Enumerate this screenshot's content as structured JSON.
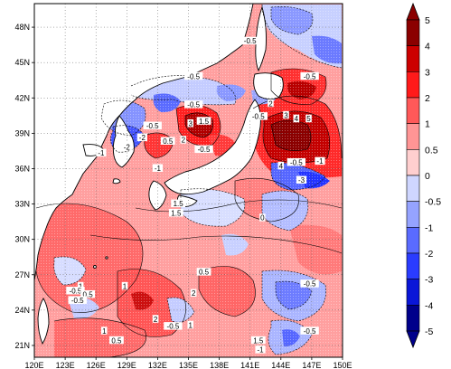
{
  "map": {
    "lat_labels": [
      "48N",
      "45N",
      "42N",
      "39N",
      "36N",
      "33N",
      "30N",
      "27N",
      "24N",
      "21N"
    ],
    "lon_labels": [
      "120E",
      "123E",
      "126E",
      "129E",
      "132E",
      "135E",
      "138E",
      "141E",
      "144E",
      "147E",
      "150E"
    ]
  },
  "colorbar": {
    "labels": [
      "5",
      "4",
      "3",
      "2",
      "1",
      "0.5",
      "0",
      "-0.5",
      "-1",
      "-2",
      "-3",
      "-4",
      "-5"
    ],
    "colors": [
      "#8b0000",
      "#cc0000",
      "#ff1a1a",
      "#ff5959",
      "#ff9595",
      "#ffcfcf",
      "#ffffff",
      "#cfd6ff",
      "#95a3ff",
      "#5a6bff",
      "#2a3cff",
      "#0a16d8",
      "#00008b"
    ]
  },
  "contour_labels": [
    {
      "text": "-0.5",
      "lon": 141.0,
      "lat": 46.8
    },
    {
      "text": "-0.5",
      "lon": 135.5,
      "lat": 43.8
    },
    {
      "text": "-0.5",
      "lon": 146.8,
      "lat": 43.8
    },
    {
      "text": "-0.5",
      "lon": 135.5,
      "lat": 41.4
    },
    {
      "text": "-0.5",
      "lon": 131.5,
      "lat": 39.6
    },
    {
      "text": "-0.5",
      "lon": 141.8,
      "lat": 40.4
    },
    {
      "text": "-0.5",
      "lon": 136.5,
      "lat": 37.6
    },
    {
      "text": "0.5",
      "lon": 133.0,
      "lat": 38.3
    },
    {
      "text": "-2",
      "lon": 130.5,
      "lat": 38.6
    },
    {
      "text": "2",
      "lon": 134.5,
      "lat": 38.4
    },
    {
      "text": "3",
      "lon": 135.2,
      "lat": 39.8
    },
    {
      "text": "1.5",
      "lon": 136.5,
      "lat": 40.0
    },
    {
      "text": "2",
      "lon": 143.0,
      "lat": 41.5
    },
    {
      "text": "3",
      "lon": 144.5,
      "lat": 40.5
    },
    {
      "text": "4",
      "lon": 145.5,
      "lat": 40.2
    },
    {
      "text": "5",
      "lon": 146.7,
      "lat": 40.2
    },
    {
      "text": "4",
      "lon": 144.0,
      "lat": 36.2
    },
    {
      "text": "-0.5",
      "lon": 145.5,
      "lat": 36.5
    },
    {
      "text": "-1",
      "lon": 147.8,
      "lat": 36.6
    },
    {
      "text": "-1",
      "lon": 126.5,
      "lat": 37.3
    },
    {
      "text": "-2",
      "lon": 129.0,
      "lat": 37.8
    },
    {
      "text": "-1",
      "lon": 132.0,
      "lat": 36.0
    },
    {
      "text": "-3",
      "lon": 146.0,
      "lat": 35.0
    },
    {
      "text": "1.5",
      "lon": 134.0,
      "lat": 33.0
    },
    {
      "text": "1.5",
      "lon": 133.8,
      "lat": 32.2
    },
    {
      "text": "0",
      "lon": 142.2,
      "lat": 31.8
    },
    {
      "text": "0.5",
      "lon": 136.5,
      "lat": 27.2
    },
    {
      "text": "-0.5",
      "lon": 146.8,
      "lat": 26.2
    },
    {
      "text": "1",
      "lon": 124.5,
      "lat": 26.0
    },
    {
      "text": "-0.5",
      "lon": 124.0,
      "lat": 25.6
    },
    {
      "text": "0.5",
      "lon": 125.2,
      "lat": 25.3
    },
    {
      "text": "-0.5",
      "lon": 124.2,
      "lat": 24.8
    },
    {
      "text": "1",
      "lon": 128.8,
      "lat": 26.0
    },
    {
      "text": "2",
      "lon": 135.5,
      "lat": 25.4
    },
    {
      "text": "2",
      "lon": 131.8,
      "lat": 23.2
    },
    {
      "text": "-0.5",
      "lon": 133.5,
      "lat": 22.6
    },
    {
      "text": "1",
      "lon": 135.2,
      "lat": 22.7
    },
    {
      "text": "1",
      "lon": 126.8,
      "lat": 22.2
    },
    {
      "text": "-0.5",
      "lon": 146.8,
      "lat": 22.2
    },
    {
      "text": "1.5",
      "lon": 141.8,
      "lat": 21.4
    },
    {
      "text": "0.5",
      "lon": 128.0,
      "lat": 21.4
    },
    {
      "text": "-1",
      "lon": 142.0,
      "lat": 20.6
    }
  ]
}
